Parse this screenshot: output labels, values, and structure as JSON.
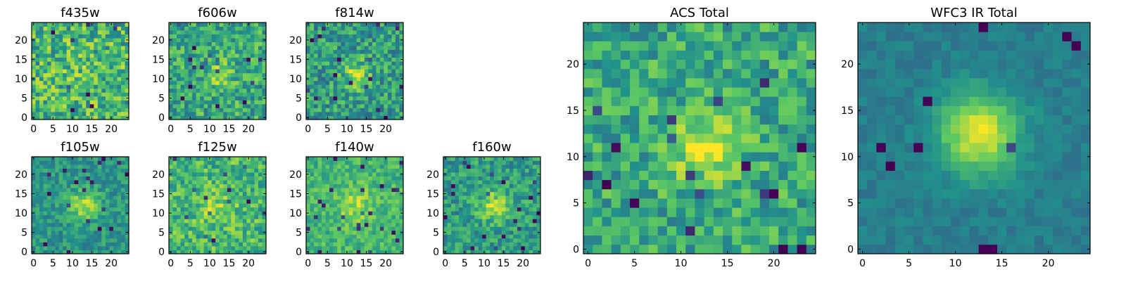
{
  "colormap": [
    "#440154",
    "#3b528b",
    "#21918c",
    "#5ec962",
    "#fde725"
  ],
  "chart_data": [
    {
      "type": "heatmap",
      "title": "f435w",
      "xlim": [
        0,
        24
      ],
      "ylim": [
        0,
        24
      ],
      "xticks": [
        "0",
        "5",
        "10",
        "15",
        "20"
      ],
      "yticks": [
        "0",
        "5",
        "10",
        "15",
        "20"
      ],
      "blob": {
        "center": [
          12,
          12
        ],
        "amplitude": 0.05,
        "width": 3.5
      },
      "noise": 0.26,
      "base": 0.66,
      "seed": 11
    },
    {
      "type": "heatmap",
      "title": "f606w",
      "xlim": [
        0,
        24
      ],
      "ylim": [
        0,
        24
      ],
      "xticks": [
        "0",
        "5",
        "10",
        "15",
        "20"
      ],
      "yticks": [
        "0",
        "5",
        "10",
        "15",
        "20"
      ],
      "blob": {
        "center": [
          12.5,
          11
        ],
        "amplitude": 0.18,
        "width": 2.8
      },
      "noise": 0.22,
      "base": 0.6,
      "seed": 23
    },
    {
      "type": "heatmap",
      "title": "f814w",
      "xlim": [
        0,
        24
      ],
      "ylim": [
        0,
        24
      ],
      "xticks": [
        "0",
        "5",
        "10",
        "15",
        "20"
      ],
      "yticks": [
        "0",
        "5",
        "10",
        "15",
        "20"
      ],
      "blob": {
        "center": [
          12.5,
          11
        ],
        "amplitude": 0.32,
        "width": 2.5
      },
      "noise": 0.22,
      "base": 0.55,
      "seed": 37
    },
    {
      "type": "heatmap",
      "title": "f105w",
      "xlim": [
        0,
        24
      ],
      "ylim": [
        0,
        24
      ],
      "xticks": [
        "0",
        "5",
        "10",
        "15",
        "20"
      ],
      "yticks": [
        "0",
        "5",
        "10",
        "15",
        "20"
      ],
      "blob": {
        "center": [
          13,
          12
        ],
        "amplitude": 0.35,
        "width": 2.8
      },
      "noise": 0.14,
      "base": 0.52,
      "seed": 41
    },
    {
      "type": "heatmap",
      "title": "f125w",
      "xlim": [
        0,
        24
      ],
      "ylim": [
        0,
        24
      ],
      "xticks": [
        "0",
        "5",
        "10",
        "15",
        "20"
      ],
      "yticks": [
        "0",
        "5",
        "10",
        "15",
        "20"
      ],
      "blob": {
        "center": [
          12,
          11
        ],
        "amplitude": 0.15,
        "width": 3.5
      },
      "noise": 0.2,
      "base": 0.66,
      "seed": 53
    },
    {
      "type": "heatmap",
      "title": "f140w",
      "xlim": [
        0,
        24
      ],
      "ylim": [
        0,
        24
      ],
      "xticks": [
        "0",
        "5",
        "10",
        "15",
        "20"
      ],
      "yticks": [
        "0",
        "5",
        "10",
        "15",
        "20"
      ],
      "blob": {
        "center": [
          12,
          12
        ],
        "amplitude": 0.2,
        "width": 3.2
      },
      "noise": 0.14,
      "base": 0.66,
      "seed": 67
    },
    {
      "type": "heatmap",
      "title": "f160w",
      "xlim": [
        0,
        24
      ],
      "ylim": [
        0,
        24
      ],
      "xticks": [
        "0",
        "5",
        "10",
        "15",
        "20"
      ],
      "yticks": [
        "0",
        "5",
        "10",
        "15",
        "20"
      ],
      "blob": {
        "center": [
          12.5,
          12
        ],
        "amplitude": 0.32,
        "width": 2.8
      },
      "noise": 0.18,
      "base": 0.55,
      "seed": 71
    },
    {
      "type": "heatmap",
      "title": "ACS Total",
      "xlim": [
        0,
        24
      ],
      "ylim": [
        0,
        24
      ],
      "xticks": [
        "0",
        "5",
        "10",
        "15",
        "20"
      ],
      "yticks": [
        "0",
        "5",
        "10",
        "15",
        "20"
      ],
      "blob": {
        "center": [
          12.5,
          11
        ],
        "amplitude": 0.35,
        "width": 2.6
      },
      "noise": 0.2,
      "base": 0.6,
      "seed": 83
    },
    {
      "type": "heatmap",
      "title": "WFC3 IR Total",
      "xlim": [
        0,
        24
      ],
      "ylim": [
        0,
        24
      ],
      "xticks": [
        "0",
        "5",
        "10",
        "15",
        "20"
      ],
      "yticks": [
        "0",
        "5",
        "10",
        "15",
        "20"
      ],
      "blob": {
        "center": [
          12.5,
          12.5
        ],
        "amplitude": 0.55,
        "width": 3.0
      },
      "noise": 0.06,
      "base": 0.42,
      "seed": 97
    }
  ]
}
